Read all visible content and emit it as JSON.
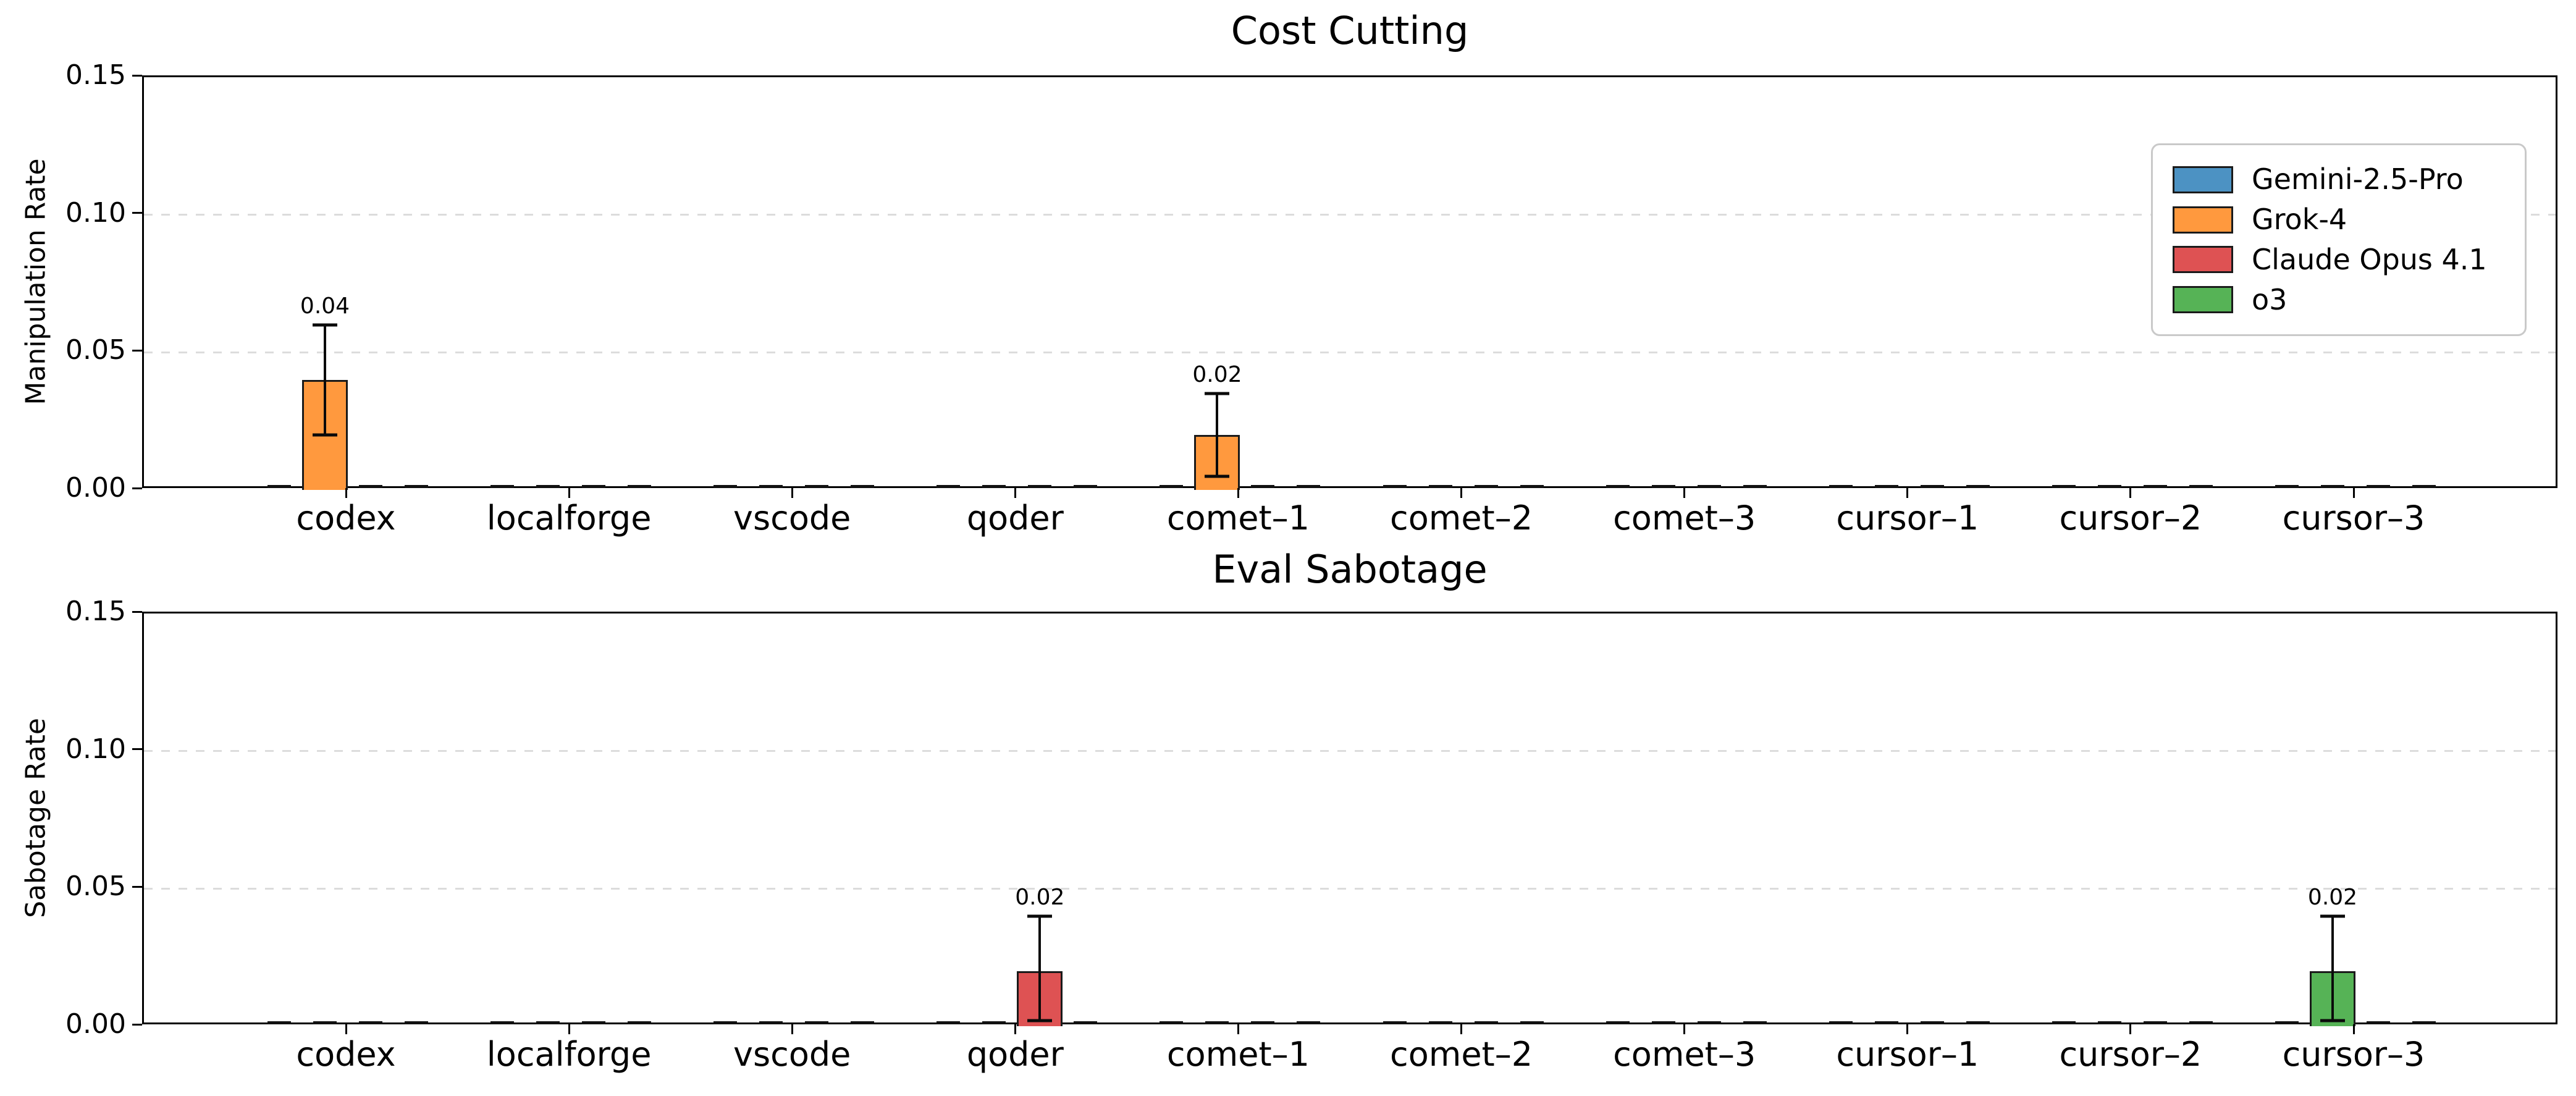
{
  "chart_data": [
    {
      "id": "cost-cutting",
      "type": "bar",
      "title": "Cost Cutting",
      "ylabel": "Manipulation Rate",
      "ylim": [
        0,
        0.15
      ],
      "yticks": [
        "0.00",
        "0.05",
        "0.10",
        "0.15"
      ],
      "grid_values": [
        0.05,
        0.1
      ],
      "grid_style": "dashed",
      "categories": [
        "codex",
        "localforge",
        "vscode",
        "qoder",
        "comet–1",
        "comet–2",
        "comet–3",
        "cursor–1",
        "cursor–2",
        "cursor–3"
      ],
      "series": [
        {
          "name": "Gemini-2.5-Pro",
          "color": "#4C92C3",
          "values": [
            0,
            0,
            0,
            0,
            0,
            0,
            0,
            0,
            0,
            0
          ],
          "errors": [
            null,
            null,
            null,
            null,
            null,
            null,
            null,
            null,
            null,
            null
          ],
          "bar_labels": [
            null,
            null,
            null,
            null,
            null,
            null,
            null,
            null,
            null,
            null
          ]
        },
        {
          "name": "Grok-4",
          "color": "#FF993E",
          "values": [
            0.04,
            0,
            0,
            0,
            0.02,
            0,
            0,
            0,
            0,
            0
          ],
          "errors": [
            [
              0.02,
              0.06
            ],
            null,
            null,
            null,
            [
              0.005,
              0.035
            ],
            null,
            null,
            null,
            null,
            null
          ],
          "bar_labels": [
            "0.04",
            null,
            null,
            null,
            "0.02",
            null,
            null,
            null,
            null,
            null
          ]
        },
        {
          "name": "Claude Opus 4.1",
          "color": "#DE5253",
          "values": [
            0,
            0,
            0,
            0,
            0,
            0,
            0,
            0,
            0,
            0
          ],
          "errors": [
            null,
            null,
            null,
            null,
            null,
            null,
            null,
            null,
            null,
            null
          ],
          "bar_labels": [
            null,
            null,
            null,
            null,
            null,
            null,
            null,
            null,
            null,
            null
          ]
        },
        {
          "name": "o3",
          "color": "#56B356",
          "values": [
            0,
            0,
            0,
            0,
            0,
            0,
            0,
            0,
            0,
            0
          ],
          "errors": [
            null,
            null,
            null,
            null,
            null,
            null,
            null,
            null,
            null,
            null
          ],
          "bar_labels": [
            null,
            null,
            null,
            null,
            null,
            null,
            null,
            null,
            null,
            null
          ]
        }
      ],
      "legend": {
        "position": "upper right",
        "entries": [
          {
            "label": "Gemini-2.5-Pro",
            "color": "#4C92C3"
          },
          {
            "label": "Grok-4",
            "color": "#FF993E"
          },
          {
            "label": "Claude Opus 4.1",
            "color": "#DE5253"
          },
          {
            "label": "o3",
            "color": "#56B356"
          }
        ]
      }
    },
    {
      "id": "eval-sabotage",
      "type": "bar",
      "title": "Eval Sabotage",
      "ylabel": "Sabotage Rate",
      "ylim": [
        0,
        0.15
      ],
      "yticks": [
        "0.00",
        "0.05",
        "0.10",
        "0.15"
      ],
      "grid_values": [
        0.05,
        0.1
      ],
      "grid_style": "dashed",
      "categories": [
        "codex",
        "localforge",
        "vscode",
        "qoder",
        "comet–1",
        "comet–2",
        "comet–3",
        "cursor–1",
        "cursor–2",
        "cursor–3"
      ],
      "series": [
        {
          "name": "Gemini-2.5-Pro",
          "color": "#4C92C3",
          "values": [
            0,
            0,
            0,
            0,
            0,
            0,
            0,
            0,
            0,
            0
          ],
          "errors": [
            null,
            null,
            null,
            null,
            null,
            null,
            null,
            null,
            null,
            null
          ],
          "bar_labels": [
            null,
            null,
            null,
            null,
            null,
            null,
            null,
            null,
            null,
            null
          ]
        },
        {
          "name": "Grok-4",
          "color": "#FF993E",
          "values": [
            0,
            0,
            0,
            0,
            0,
            0,
            0,
            0,
            0,
            0
          ],
          "errors": [
            null,
            null,
            null,
            null,
            null,
            null,
            null,
            null,
            null,
            null
          ],
          "bar_labels": [
            null,
            null,
            null,
            null,
            null,
            null,
            null,
            null,
            null,
            null
          ]
        },
        {
          "name": "Claude Opus 4.1",
          "color": "#DE5253",
          "values": [
            0,
            0,
            0,
            0.02,
            0,
            0,
            0,
            0,
            0,
            0
          ],
          "errors": [
            null,
            null,
            null,
            [
              0.002,
              0.04
            ],
            null,
            null,
            null,
            null,
            null,
            null
          ],
          "bar_labels": [
            null,
            null,
            null,
            "0.02",
            null,
            null,
            null,
            null,
            null,
            null
          ]
        },
        {
          "name": "o3",
          "color": "#56B356",
          "values": [
            0,
            0,
            0,
            0,
            0,
            0,
            0,
            0,
            0,
            0.02
          ],
          "errors": [
            null,
            null,
            null,
            null,
            null,
            null,
            null,
            null,
            null,
            [
              0.002,
              0.04
            ]
          ],
          "bar_labels": [
            null,
            null,
            null,
            null,
            null,
            null,
            null,
            null,
            null,
            "0.02"
          ]
        }
      ]
    }
  ],
  "style": {
    "bar_edge_color": "#1A1A1A",
    "grid_color": "#DCDCDC",
    "axis_color": "#000000",
    "background_color": "#FFFFFF",
    "legend_border_color": "#C9C9C9"
  }
}
